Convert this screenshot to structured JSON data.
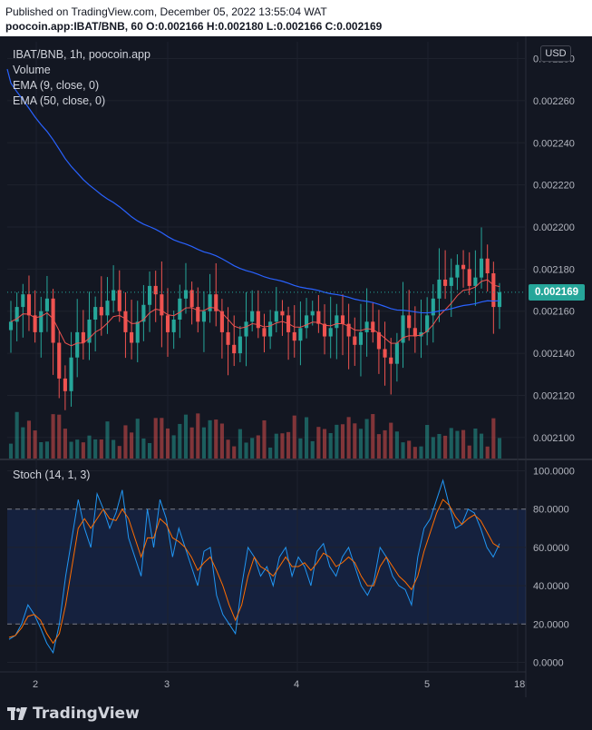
{
  "header": {
    "published": "Published on TradingView.com, December 05, 2022 13:55:04 WAT",
    "ohlc": "poocoin.app:IBAT/BNB, 60  O:0.002166  H:0.002180  L:0.002166  C:0.002169"
  },
  "legend": {
    "symbol": "IBAT/BNB, 1h, poocoin.app",
    "volume": "Volume",
    "ema9": "EMA (9, close, 0)",
    "ema50": "EMA (50, close, 0)"
  },
  "currency_button": "USD",
  "last_price": "0.002169",
  "stoch_label": "Stoch (14, 1, 3)",
  "footer": {
    "logo_text": "TradingView"
  },
  "colors": {
    "up": "#26a69a",
    "down": "#ef5350",
    "ema9": "#ef5350",
    "ema50": "#2962ff",
    "stochK": "#2196f3",
    "stochD": "#ff6d00",
    "background": "#131722"
  },
  "chart_data": [
    {
      "type": "candlestick",
      "title": "IBAT/BNB, 1h, poocoin.app",
      "x_ticks": [
        "2",
        "3",
        "4",
        "5",
        "18"
      ],
      "y_ticks": [
        "0.002100",
        "0.002120",
        "0.002140",
        "0.002160",
        "0.002180",
        "0.002200",
        "0.002220",
        "0.002240",
        "0.002260",
        "0.002280"
      ],
      "ylim": [
        0.00209,
        0.002288
      ],
      "last_close": 0.002169,
      "closes": [
        0.002155,
        0.002162,
        0.002168,
        0.002158,
        0.00215,
        0.00216,
        0.002166,
        0.002145,
        0.002128,
        0.002122,
        0.002138,
        0.00215,
        0.002145,
        0.002156,
        0.002162,
        0.002158,
        0.002165,
        0.00217,
        0.00216,
        0.00215,
        0.002145,
        0.002155,
        0.002163,
        0.002172,
        0.002168,
        0.002158,
        0.00215,
        0.002156,
        0.002166,
        0.00217,
        0.002162,
        0.002155,
        0.00216,
        0.002168,
        0.00216,
        0.00215,
        0.002144,
        0.00214,
        0.002148,
        0.002155,
        0.00216,
        0.002152,
        0.002148,
        0.002155,
        0.00216,
        0.002158,
        0.00215,
        0.002146,
        0.002152,
        0.002158,
        0.00216,
        0.002154,
        0.002148,
        0.002152,
        0.002158,
        0.002154,
        0.002148,
        0.002144,
        0.00215,
        0.002155,
        0.00215,
        0.002142,
        0.002138,
        0.002135,
        0.002145,
        0.002158,
        0.002152,
        0.002148,
        0.00215,
        0.002158,
        0.002166,
        0.002175,
        0.002172,
        0.002176,
        0.002182,
        0.00218,
        0.002172,
        0.002176,
        0.002185,
        0.002178,
        0.002162,
        0.002169
      ],
      "volume_levels": "proportional bars, mixed colors",
      "ema9_color": "#ef5350",
      "ema50_color": "#2962ff"
    },
    {
      "type": "line",
      "title": "Stoch (14, 1, 3)",
      "y_ticks": [
        "0.0000",
        "20.0000",
        "40.0000",
        "60.0000",
        "80.0000",
        "100.0000"
      ],
      "ylim": [
        -5,
        105
      ],
      "band": [
        20,
        80
      ],
      "series": [
        {
          "values": [
            12,
            14,
            20,
            30,
            25,
            18,
            10,
            5,
            20,
            45,
            65,
            85,
            70,
            60,
            88,
            80,
            70,
            78,
            90,
            65,
            55,
            45,
            80,
            60,
            85,
            75,
            55,
            70,
            60,
            50,
            40,
            58,
            60,
            35,
            25,
            20,
            15,
            40,
            60,
            55,
            45,
            50,
            40,
            55,
            60,
            45,
            55,
            50,
            40,
            58,
            62,
            50,
            45,
            55,
            60,
            50,
            40,
            35,
            42,
            60,
            55,
            45,
            40,
            38,
            30,
            55,
            70,
            75,
            85,
            95,
            82,
            70,
            72,
            80,
            78,
            70,
            60,
            55,
            62
          ]
        },
        {
          "values": [
            13,
            14,
            18,
            24,
            25,
            22,
            15,
            10,
            15,
            30,
            50,
            70,
            75,
            70,
            75,
            80,
            75,
            74,
            80,
            75,
            65,
            55,
            65,
            65,
            75,
            72,
            65,
            63,
            60,
            55,
            48,
            52,
            55,
            48,
            40,
            30,
            22,
            30,
            45,
            55,
            50,
            48,
            45,
            50,
            55,
            50,
            50,
            52,
            48,
            52,
            57,
            55,
            50,
            52,
            55,
            52,
            45,
            40,
            40,
            50,
            55,
            50,
            45,
            42,
            38,
            45,
            58,
            68,
            78,
            85,
            82,
            76,
            72,
            75,
            77,
            74,
            68,
            62,
            60
          ]
        }
      ]
    }
  ]
}
